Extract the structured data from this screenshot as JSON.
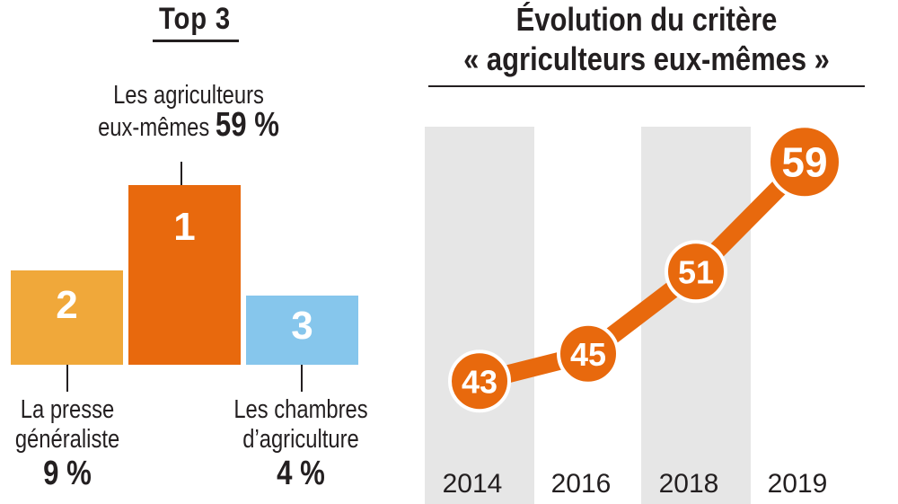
{
  "left_panel": {
    "title": "Top 3",
    "podium": [
      {
        "rank": "1",
        "line1": "Les agriculteurs",
        "line2": "eux-mêmes",
        "pct": "59 %",
        "color": "#e8690d"
      },
      {
        "rank": "2",
        "line1": "La presse",
        "line2": "généraliste",
        "pct": "9 %",
        "color": "#f0a83a"
      },
      {
        "rank": "3",
        "line1": "Les chambres",
        "line2": "d’agriculture",
        "pct": "4 %",
        "color": "#86c6ec"
      }
    ]
  },
  "right_panel": {
    "title_line1": "Évolution du critère",
    "title_line2": "« agriculteurs eux-mêmes »"
  },
  "chart_data": [
    {
      "type": "bar",
      "title": "Top 3",
      "categories": [
        "Les agriculteurs eux-mêmes",
        "La presse généraliste",
        "Les chambres d’agriculture"
      ],
      "ranks": [
        "1",
        "2",
        "3"
      ],
      "values": [
        59,
        9,
        4
      ],
      "unit": "%",
      "colors": [
        "#e8690d",
        "#f0a83a",
        "#86c6ec"
      ]
    },
    {
      "type": "line",
      "title": "Évolution du critère « agriculteurs eux-mêmes »",
      "x": [
        "2014",
        "2016",
        "2018",
        "2019"
      ],
      "series": [
        {
          "values": [
            43,
            45,
            51,
            59
          ]
        }
      ],
      "ylim": [
        40,
        60
      ],
      "line_color": "#e8690d",
      "band_color": "#e6e6e6",
      "shaded_years": [
        "2014",
        "2018"
      ]
    }
  ]
}
